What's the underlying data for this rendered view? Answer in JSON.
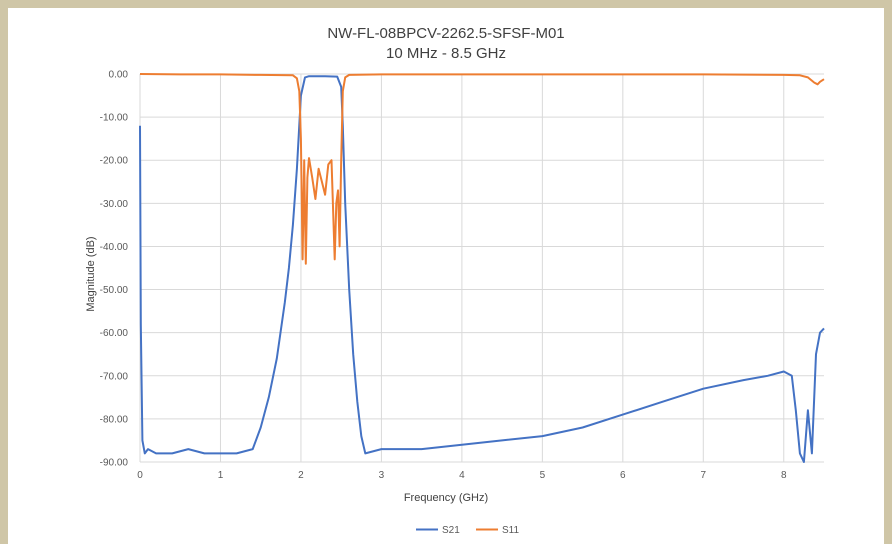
{
  "chart_data": {
    "type": "line",
    "title": "NW-FL-08BPCV-2262.5-SFSF-M01",
    "subtitle": "10 MHz - 8.5 GHz",
    "xlabel": "Frequency (GHz)",
    "ylabel": "Magnitude (dB)",
    "xlim": [
      0,
      8.5
    ],
    "ylim": [
      -90,
      0
    ],
    "x_ticks": [
      "0",
      "1",
      "2",
      "3",
      "4",
      "5",
      "6",
      "7",
      "8"
    ],
    "y_ticks": [
      "0.00",
      "-10.00",
      "-20.00",
      "-30.00",
      "-40.00",
      "-50.00",
      "-60.00",
      "-70.00",
      "-80.00",
      "-90.00"
    ],
    "grid": true,
    "legend_position": "bottom",
    "series": [
      {
        "name": "S21",
        "color": "#4472c4",
        "x": [
          0.0,
          0.01,
          0.03,
          0.06,
          0.1,
          0.2,
          0.4,
          0.6,
          0.8,
          1.0,
          1.2,
          1.4,
          1.5,
          1.6,
          1.7,
          1.8,
          1.85,
          1.9,
          1.95,
          2.0,
          2.05,
          2.1,
          2.3,
          2.45,
          2.5,
          2.52,
          2.55,
          2.6,
          2.65,
          2.7,
          2.75,
          2.8,
          3.0,
          3.5,
          4.0,
          4.5,
          5.0,
          5.5,
          6.0,
          6.5,
          7.0,
          7.5,
          7.8,
          8.0,
          8.1,
          8.15,
          8.2,
          8.25,
          8.3,
          8.35,
          8.4,
          8.45,
          8.5
        ],
        "y": [
          -12.0,
          -58.0,
          -85.0,
          -88.0,
          -87.0,
          -88.0,
          -88.0,
          -87.0,
          -88.0,
          -88.0,
          -88.0,
          -87.0,
          -82.0,
          -75.0,
          -66.0,
          -53.0,
          -45.0,
          -35.0,
          -22.0,
          -5.0,
          -0.8,
          -0.5,
          -0.5,
          -0.6,
          -3.0,
          -12.0,
          -30.0,
          -50.0,
          -65.0,
          -76.0,
          -84.0,
          -88.0,
          -87.0,
          -87.0,
          -86.0,
          -85.0,
          -84.0,
          -82.0,
          -79.0,
          -76.0,
          -73.0,
          -71.0,
          -70.0,
          -69.0,
          -70.0,
          -78.0,
          -88.0,
          -90.0,
          -78.0,
          -88.0,
          -65.0,
          -60.0,
          -59.0
        ]
      },
      {
        "name": "S11",
        "color": "#ed7d31",
        "x": [
          0.0,
          0.5,
          1.0,
          1.5,
          1.9,
          1.95,
          1.98,
          2.0,
          2.02,
          2.04,
          2.06,
          2.08,
          2.1,
          2.14,
          2.18,
          2.22,
          2.26,
          2.3,
          2.34,
          2.38,
          2.42,
          2.44,
          2.46,
          2.48,
          2.5,
          2.52,
          2.55,
          2.6,
          3.0,
          5.0,
          7.0,
          8.0,
          8.2,
          8.3,
          8.38,
          8.42,
          8.45,
          8.5
        ],
        "y": [
          0.0,
          -0.1,
          -0.1,
          -0.2,
          -0.3,
          -1.0,
          -4.0,
          -15.0,
          -43.0,
          -20.0,
          -44.0,
          -24.0,
          -19.5,
          -24.0,
          -29.0,
          -22.0,
          -25.0,
          -28.0,
          -21.0,
          -20.0,
          -43.0,
          -30.0,
          -27.0,
          -40.0,
          -20.0,
          -4.0,
          -0.8,
          -0.2,
          -0.1,
          -0.1,
          -0.1,
          -0.2,
          -0.3,
          -0.8,
          -2.0,
          -2.4,
          -1.8,
          -1.2
        ]
      }
    ]
  }
}
